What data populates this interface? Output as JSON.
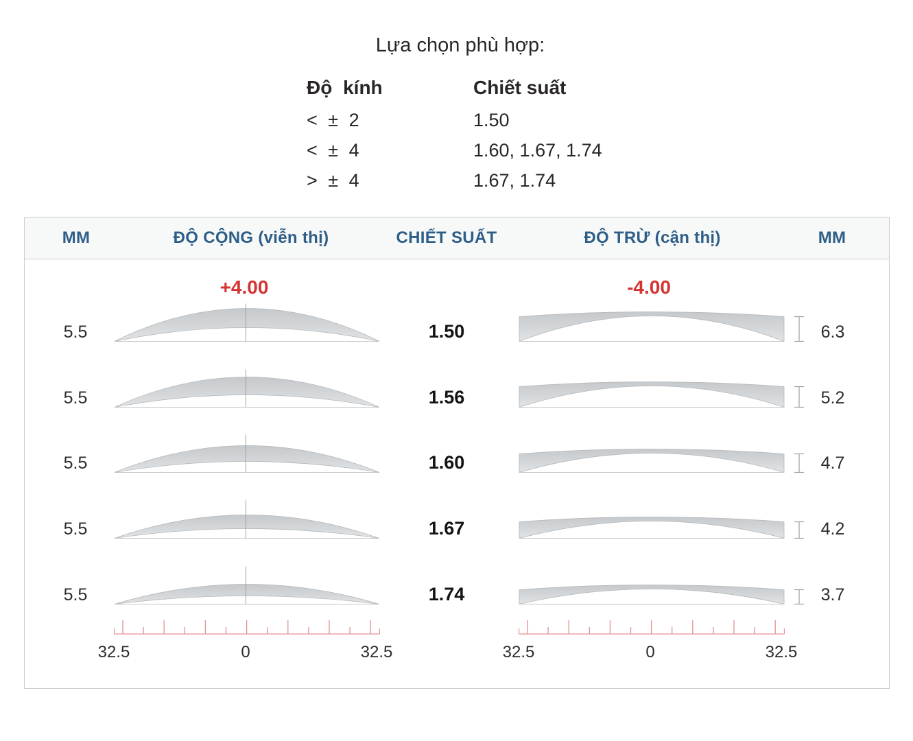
{
  "selection": {
    "title": "Lựa chọn phù hợp:",
    "col1_header": "Độ kính",
    "col2_header": "Chiết suất",
    "rows": [
      {
        "power": "< ± 2",
        "indices": "1.50"
      },
      {
        "power": "< ± 4",
        "indices": "1.60, 1.67, 1.74"
      },
      {
        "power": "> ± 4",
        "indices": "1.67, 1.74"
      }
    ]
  },
  "table": {
    "headers": {
      "mm_left": "MM",
      "plus_col": "ĐỘ CỘNG (viễn thị)",
      "index_col": "CHIẾT SUẤT",
      "minus_col": "ĐỘ TRỪ (cận thị)",
      "mm_right": "MM"
    },
    "plus_power_label": "+4.00",
    "minus_power_label": "-4.00",
    "rows": [
      {
        "center_mm": "5.5",
        "index": "1.50",
        "edge_mm": "6.3"
      },
      {
        "center_mm": "5.5",
        "index": "1.56",
        "edge_mm": "5.2"
      },
      {
        "center_mm": "5.5",
        "index": "1.60",
        "edge_mm": "4.7"
      },
      {
        "center_mm": "5.5",
        "index": "1.67",
        "edge_mm": "4.2"
      },
      {
        "center_mm": "5.5",
        "index": "1.74",
        "edge_mm": "3.7"
      }
    ],
    "ruler": {
      "left_label": "32.5",
      "center_label": "0",
      "right_label": "32.5"
    }
  },
  "colors": {
    "accent_red": "#d53331",
    "ruler_red": "#e29190",
    "header_blue": "#2d5e88",
    "lens_gray_top": "#c8cbce",
    "lens_gray_bottom": "#e1e3e5",
    "text_dark": "#2a2627"
  }
}
